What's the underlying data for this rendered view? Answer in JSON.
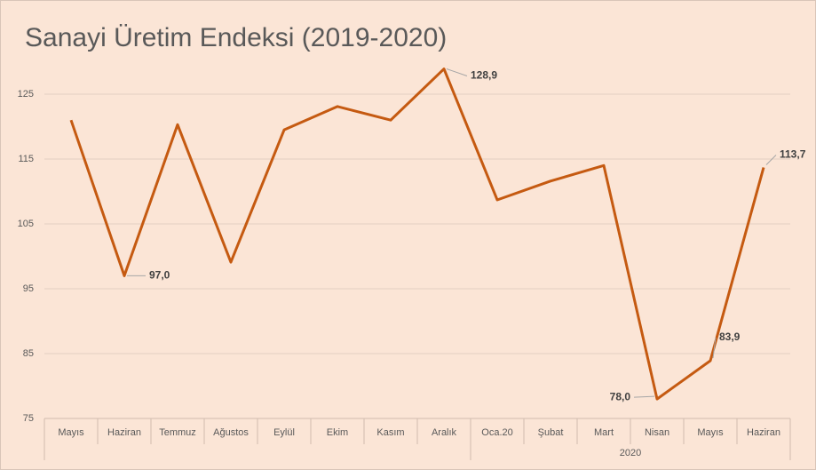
{
  "chart_data": {
    "type": "line",
    "title": "Sanayi Üretim Endeksi (2019-2020)",
    "categories": [
      "Mayıs",
      "Haziran",
      "Temmuz",
      "Ağustos",
      "Eylül",
      "Ekim",
      "Kasım",
      "Aralık",
      "Oca.20",
      "Şubat",
      "Mart",
      "Nisan",
      "Mayıs",
      "Haziran"
    ],
    "category_groups": [
      {
        "label": "2020",
        "from": 8,
        "to": 13
      }
    ],
    "series": [
      {
        "name": "Sanayi Üretim Endeksi",
        "color": "#c55a11",
        "values": [
          121.0,
          97.0,
          120.3,
          99.1,
          119.5,
          123.1,
          121.0,
          128.9,
          108.7,
          111.6,
          114.0,
          78.0,
          83.9,
          113.7
        ],
        "value_labels": [
          null,
          "97,0",
          null,
          null,
          null,
          null,
          null,
          "128,9",
          null,
          null,
          null,
          "78,0",
          "83,9",
          "113,7"
        ]
      }
    ],
    "ylim": [
      75,
      131
    ],
    "yticks": [
      75,
      85,
      95,
      105,
      115,
      125
    ],
    "grid": true
  }
}
